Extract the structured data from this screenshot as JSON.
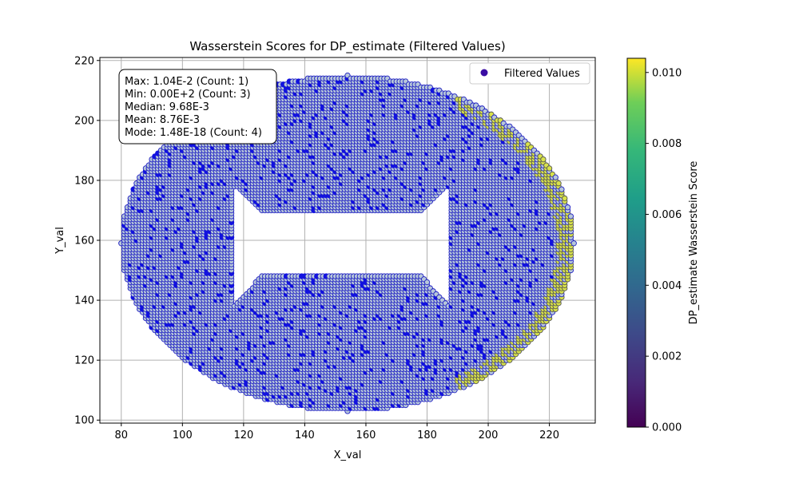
{
  "chart_data": {
    "type": "scatter",
    "title": "Wasserstein Scores for DP_estimate (Filtered Values)",
    "xlabel": "X_val",
    "ylabel": "Y_val",
    "xlim": [
      73,
      235
    ],
    "ylim": [
      99,
      221
    ],
    "x_ticks": [
      80,
      100,
      120,
      140,
      160,
      180,
      200,
      220
    ],
    "y_ticks": [
      100,
      120,
      140,
      160,
      180,
      200,
      220
    ],
    "grid": true,
    "legend": {
      "position": "top-right",
      "label": "Filtered Values",
      "marker_color": "#3a0ca3"
    },
    "colorbar": {
      "label": "DP_estimate Wasserstein Score",
      "colormap": "viridis",
      "range": [
        0.0,
        0.0104
      ],
      "ticks": [
        "0.000",
        "0.002",
        "0.004",
        "0.006",
        "0.008",
        "0.010"
      ]
    },
    "stats": [
      "Max: 1.04E-2 (Count: 1)",
      "Min: 0.00E+2 (Count: 3)",
      "Median: 9.68E-3",
      "Mean: 8.76E-3",
      "Mode: 1.48E-18 (Count: 4)"
    ],
    "point_grid_spacing": 1,
    "region": {
      "outer_ellipse": {
        "cx": 154,
        "cy": 159,
        "rx": 74,
        "ry": 56
      },
      "hole": {
        "x": [
          117,
          187
        ],
        "y": [
          138,
          178
        ],
        "waist_y": [
          148,
          170
        ],
        "waist_x": [
          125,
          178
        ]
      }
    },
    "colors": {
      "point_face": "#b7c7d9",
      "point_edge": "#1f1fc4",
      "dense_patch": "#1212e0",
      "high_value": "#d8e24a",
      "grid": "#b0b0b0"
    }
  }
}
